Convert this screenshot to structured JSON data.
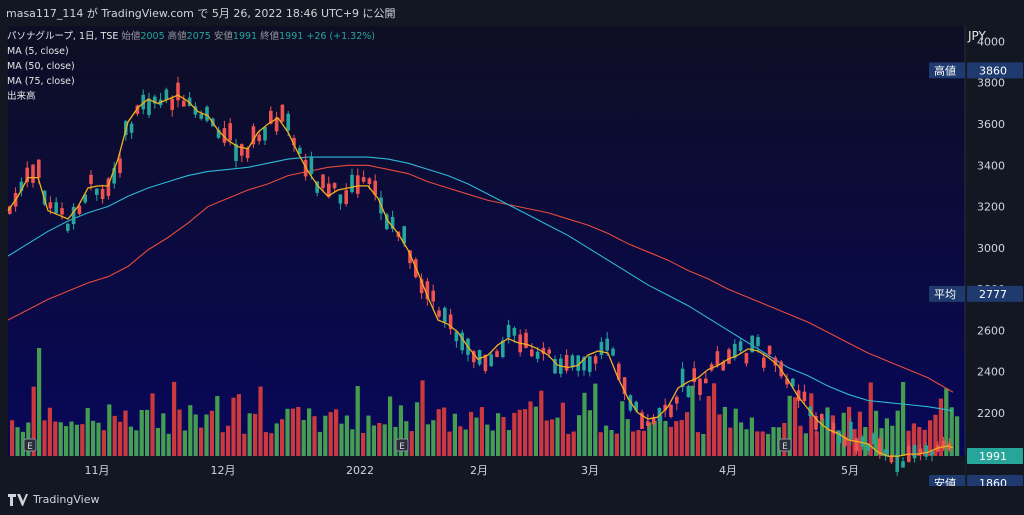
{
  "topbar": {
    "text": "masa117_114 が TradingView.com で 5月 26, 2022 18:46 UTC+9 に公開"
  },
  "legend": {
    "symbol": "パソナグループ, 1日, TSE",
    "open_label": "始値",
    "open": "2005",
    "high_label": "高値",
    "high": "2075",
    "low_label": "安値",
    "low": "1991",
    "close_label": "終値",
    "close": "1991",
    "change": "+26 (+1.32%)",
    "ma5": "MA (5, close)",
    "ma50": "MA (50, close)",
    "ma75": "MA (75, close)",
    "volume": "出来高"
  },
  "axis": {
    "currency": "JPY"
  },
  "footer": {
    "brand": "TradingView"
  },
  "colors": {
    "up": "#26a69a",
    "down": "#ef5350",
    "ma5": "#f2b01e",
    "ma50": "#2fb9d4",
    "ma75": "#e84a3c",
    "volume_up": "#4caf50",
    "volume_down": "#e0403a"
  },
  "chart_data": {
    "type": "candlestick",
    "ylim": [
      1991,
      4075
    ],
    "y_ticks": [
      4000,
      3800,
      3600,
      3400,
      3200,
      3000,
      2800,
      2600,
      2400,
      2200
    ],
    "x_ticks": [
      "11月",
      "12月",
      "2022",
      "2月",
      "3月",
      "4月",
      "5月"
    ],
    "price_labels": [
      {
        "label": "高値",
        "value": "3860"
      },
      {
        "label": "平均",
        "value": "2777"
      },
      {
        "label": "",
        "value": "1991"
      },
      {
        "label": "安値",
        "value": "1860"
      }
    ],
    "event_markers": [
      "E",
      "E",
      "E"
    ],
    "ma5_samples": [
      [
        0,
        3180
      ],
      [
        10,
        3250
      ],
      [
        20,
        3340
      ],
      [
        30,
        3340
      ],
      [
        40,
        3180
      ],
      [
        50,
        3160
      ],
      [
        60,
        3140
      ],
      [
        70,
        3200
      ],
      [
        80,
        3290
      ],
      [
        90,
        3300
      ],
      [
        100,
        3300
      ],
      [
        110,
        3430
      ],
      [
        120,
        3610
      ],
      [
        130,
        3680
      ],
      [
        140,
        3720
      ],
      [
        150,
        3700
      ],
      [
        160,
        3720
      ],
      [
        170,
        3740
      ],
      [
        180,
        3710
      ],
      [
        190,
        3660
      ],
      [
        200,
        3640
      ],
      [
        210,
        3570
      ],
      [
        220,
        3520
      ],
      [
        230,
        3490
      ],
      [
        240,
        3480
      ],
      [
        250,
        3560
      ],
      [
        260,
        3600
      ],
      [
        270,
        3630
      ],
      [
        280,
        3560
      ],
      [
        290,
        3460
      ],
      [
        300,
        3370
      ],
      [
        310,
        3300
      ],
      [
        320,
        3250
      ],
      [
        330,
        3280
      ],
      [
        340,
        3290
      ],
      [
        350,
        3300
      ],
      [
        360,
        3300
      ],
      [
        370,
        3240
      ],
      [
        380,
        3130
      ],
      [
        390,
        3070
      ],
      [
        400,
        2990
      ],
      [
        410,
        2880
      ],
      [
        420,
        2760
      ],
      [
        430,
        2650
      ],
      [
        440,
        2630
      ],
      [
        450,
        2590
      ],
      [
        460,
        2520
      ],
      [
        470,
        2460
      ],
      [
        480,
        2480
      ],
      [
        490,
        2530
      ],
      [
        500,
        2560
      ],
      [
        510,
        2540
      ],
      [
        520,
        2530
      ],
      [
        530,
        2510
      ],
      [
        540,
        2480
      ],
      [
        550,
        2430
      ],
      [
        560,
        2420
      ],
      [
        570,
        2430
      ],
      [
        580,
        2480
      ],
      [
        590,
        2500
      ],
      [
        600,
        2490
      ],
      [
        610,
        2370
      ],
      [
        620,
        2270
      ],
      [
        630,
        2200
      ],
      [
        640,
        2170
      ],
      [
        650,
        2180
      ],
      [
        660,
        2230
      ],
      [
        670,
        2320
      ],
      [
        680,
        2350
      ],
      [
        690,
        2370
      ],
      [
        700,
        2410
      ],
      [
        710,
        2430
      ],
      [
        720,
        2460
      ],
      [
        730,
        2480
      ],
      [
        740,
        2510
      ],
      [
        750,
        2500
      ],
      [
        760,
        2470
      ],
      [
        770,
        2430
      ],
      [
        780,
        2360
      ],
      [
        790,
        2280
      ],
      [
        800,
        2220
      ],
      [
        810,
        2160
      ],
      [
        820,
        2120
      ],
      [
        830,
        2100
      ],
      [
        840,
        2070
      ],
      [
        850,
        2060
      ],
      [
        860,
        2050
      ],
      [
        870,
        2010
      ],
      [
        880,
        1990
      ],
      [
        890,
        1990
      ],
      [
        900,
        2000
      ],
      [
        910,
        2000
      ],
      [
        920,
        2010
      ],
      [
        930,
        2030
      ],
      [
        940,
        2040
      ],
      [
        945,
        2030
      ]
    ],
    "ma50_samples": [
      [
        0,
        2960
      ],
      [
        20,
        3020
      ],
      [
        40,
        3080
      ],
      [
        60,
        3130
      ],
      [
        80,
        3170
      ],
      [
        100,
        3200
      ],
      [
        120,
        3250
      ],
      [
        140,
        3290
      ],
      [
        160,
        3320
      ],
      [
        180,
        3350
      ],
      [
        200,
        3370
      ],
      [
        220,
        3380
      ],
      [
        240,
        3390
      ],
      [
        260,
        3410
      ],
      [
        280,
        3430
      ],
      [
        300,
        3440
      ],
      [
        320,
        3440
      ],
      [
        340,
        3440
      ],
      [
        360,
        3440
      ],
      [
        380,
        3430
      ],
      [
        400,
        3410
      ],
      [
        420,
        3380
      ],
      [
        440,
        3350
      ],
      [
        460,
        3310
      ],
      [
        480,
        3260
      ],
      [
        500,
        3210
      ],
      [
        520,
        3160
      ],
      [
        540,
        3110
      ],
      [
        560,
        3060
      ],
      [
        580,
        3000
      ],
      [
        600,
        2940
      ],
      [
        620,
        2880
      ],
      [
        640,
        2820
      ],
      [
        660,
        2770
      ],
      [
        680,
        2720
      ],
      [
        700,
        2660
      ],
      [
        720,
        2600
      ],
      [
        740,
        2540
      ],
      [
        760,
        2480
      ],
      [
        780,
        2420
      ],
      [
        800,
        2380
      ],
      [
        820,
        2330
      ],
      [
        840,
        2290
      ],
      [
        860,
        2260
      ],
      [
        880,
        2250
      ],
      [
        900,
        2240
      ],
      [
        920,
        2230
      ],
      [
        945,
        2210
      ]
    ],
    "ma75_samples": [
      [
        0,
        2650
      ],
      [
        20,
        2700
      ],
      [
        40,
        2750
      ],
      [
        60,
        2790
      ],
      [
        80,
        2830
      ],
      [
        100,
        2860
      ],
      [
        120,
        2910
      ],
      [
        140,
        2990
      ],
      [
        160,
        3050
      ],
      [
        180,
        3120
      ],
      [
        200,
        3200
      ],
      [
        220,
        3240
      ],
      [
        240,
        3280
      ],
      [
        260,
        3310
      ],
      [
        280,
        3350
      ],
      [
        300,
        3370
      ],
      [
        320,
        3390
      ],
      [
        340,
        3400
      ],
      [
        360,
        3400
      ],
      [
        380,
        3380
      ],
      [
        400,
        3360
      ],
      [
        420,
        3320
      ],
      [
        440,
        3290
      ],
      [
        460,
        3260
      ],
      [
        480,
        3230
      ],
      [
        500,
        3210
      ],
      [
        520,
        3190
      ],
      [
        540,
        3170
      ],
      [
        560,
        3140
      ],
      [
        580,
        3110
      ],
      [
        600,
        3070
      ],
      [
        620,
        3020
      ],
      [
        640,
        2980
      ],
      [
        660,
        2940
      ],
      [
        680,
        2890
      ],
      [
        700,
        2850
      ],
      [
        720,
        2800
      ],
      [
        740,
        2760
      ],
      [
        760,
        2720
      ],
      [
        780,
        2680
      ],
      [
        800,
        2640
      ],
      [
        820,
        2590
      ],
      [
        840,
        2540
      ],
      [
        860,
        2490
      ],
      [
        880,
        2450
      ],
      [
        900,
        2410
      ],
      [
        920,
        2370
      ],
      [
        945,
        2300
      ]
    ]
  }
}
